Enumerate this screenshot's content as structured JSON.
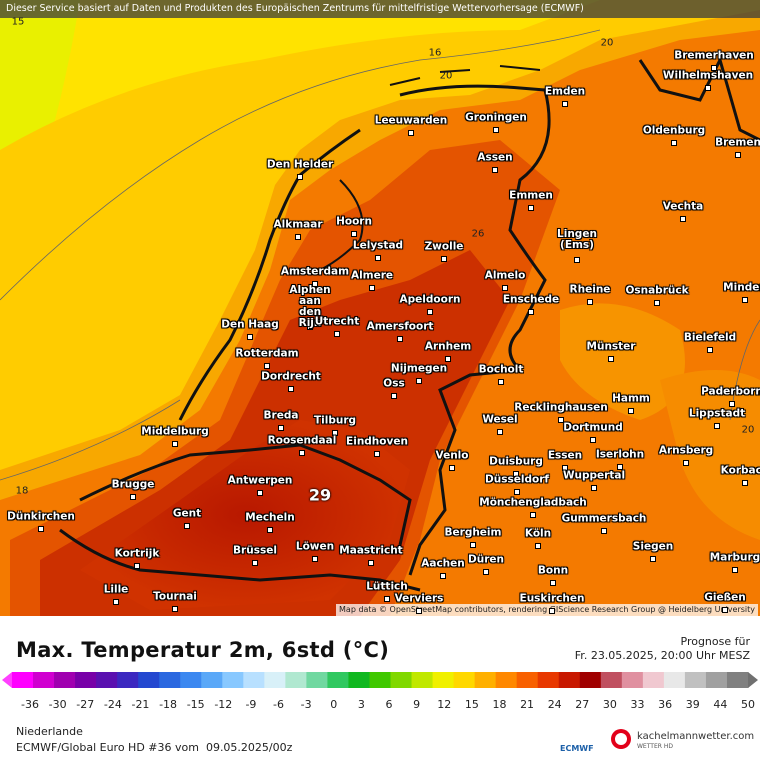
{
  "header": {
    "attribution": "Dieser Service basiert auf Daten und Produkten des Europäischen Zentrums für mittelfristige Wettervorhersage (ECMWF)"
  },
  "map": {
    "cities": [
      "Bremerhaven",
      "Wilhelmshaven",
      "Emden",
      "Leeuwarden",
      "Groningen",
      "Oldenburg",
      "Bremen",
      "Den Helder",
      "Assen",
      "Emmen",
      "Vechta",
      "Alkmaar",
      "Hoorn",
      "Lingen (Ems)",
      "Lelystad",
      "Zwolle",
      "Amsterdam",
      "Almere",
      "Almelo",
      "Rheine",
      "Osnabrück",
      "Minden",
      "Alphen aan den Rijn",
      "Apeldoorn",
      "Enschede",
      "Den Haag",
      "Utrecht",
      "Amersfoort",
      "Bielefeld",
      "Rotterdam",
      "Arnhem",
      "Münster",
      "Nijmegen",
      "Bocholt",
      "Dordrecht",
      "Oss",
      "Paderborn",
      "Hamm",
      "Recklinghausen",
      "Lippstadt",
      "Breda",
      "Tilburg",
      "Wesel",
      "Middelburg",
      "Roosendaal",
      "Dortmund",
      "Eindhoven",
      "Arnsberg",
      "Iserlohn",
      "Venlo",
      "Essen",
      "Duisburg",
      "Wuppertal",
      "Korbach",
      "Antwerpen",
      "Düsseldorf",
      "Brugge",
      "Mönchengladbach",
      "Gent",
      "Mecheln",
      "Gummersbach",
      "Dünkirchen",
      "Bergheim",
      "Köln",
      "Löwen",
      "Maastricht",
      "Siegen",
      "Brüssel",
      "Kortrijk",
      "Düren",
      "Marburg",
      "Aachen",
      "Bonn",
      "Lille",
      "Lüttich",
      "Tournai",
      "Gießen",
      "Euskirchen",
      "Verviers"
    ],
    "contour_labels": [
      "15",
      "16",
      "20",
      "20",
      "26",
      "29",
      "18",
      "20"
    ],
    "credit": "Map data © OpenStreetMap contributors, rendering GIScience Research Group @ Heidelberg University"
  },
  "footer": {
    "title": "Max. Temperatur 2m, 6std (°C)",
    "forecast_label": "Prognose für",
    "forecast_time": "Fr. 23.05.2025, 20:00 Uhr MESZ",
    "colorbar_ticks": [
      -36,
      -30,
      -27,
      -24,
      -21,
      -18,
      -15,
      -12,
      -9,
      -6,
      -3,
      0,
      3,
      6,
      9,
      12,
      15,
      18,
      21,
      24,
      27,
      30,
      33,
      36,
      39,
      44,
      50
    ],
    "region": "Niederlande",
    "model_run": "ECMWF/Global Euro HD #36 vom  09.05.2025/00z",
    "logos": [
      "ECMWF",
      "kachelmannwetter.com",
      "WETTER HD"
    ]
  }
}
